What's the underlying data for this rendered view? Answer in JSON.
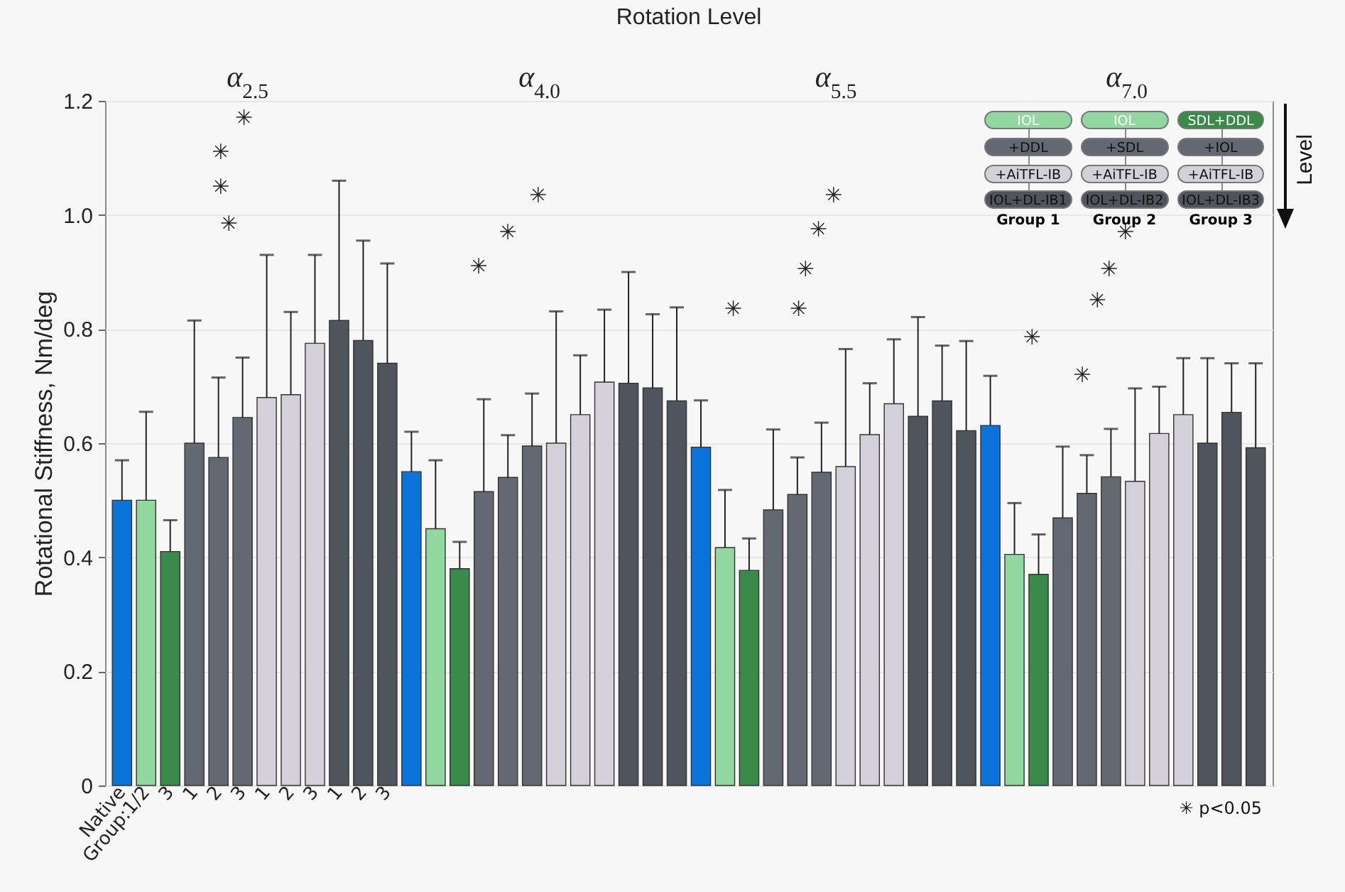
{
  "chart_data": {
    "type": "bar",
    "title": "Rotation Level",
    "ylabel": "Rotational Stiffness, Nm/deg",
    "categories": [
      "Native",
      "Group:1/2",
      "3",
      "1",
      "2",
      "3",
      "1",
      "2",
      "3",
      "1",
      "2",
      "3",
      null,
      null,
      null,
      null,
      null,
      null,
      null,
      null,
      null,
      null,
      null,
      null,
      null,
      null,
      null,
      null,
      null,
      null,
      null,
      null,
      null,
      null,
      null,
      null,
      null,
      null,
      null,
      null,
      null,
      null,
      null,
      null,
      null,
      null,
      null,
      null
    ],
    "values": [
      0.5,
      0.5,
      0.41,
      0.6,
      0.575,
      0.645,
      0.68,
      0.685,
      0.775,
      0.815,
      0.78,
      0.74,
      0.55,
      0.45,
      0.38,
      0.515,
      0.54,
      0.595,
      0.6,
      0.65,
      0.707,
      0.705,
      0.697,
      0.674,
      0.593,
      0.417,
      0.377,
      0.483,
      0.51,
      0.549,
      0.559,
      0.615,
      0.669,
      0.647,
      0.674,
      0.622,
      0.631,
      0.405,
      0.37,
      0.469,
      0.512,
      0.541,
      0.533,
      0.617,
      0.65,
      0.6,
      0.654,
      0.592
    ],
    "errors": [
      [
        0.5,
        0.57
      ],
      [
        0.5,
        0.655
      ],
      [
        0.41,
        0.465
      ],
      [
        0.6,
        0.815
      ],
      [
        0.575,
        0.715
      ],
      [
        0.645,
        0.75
      ],
      [
        0.68,
        0.93
      ],
      [
        0.685,
        0.83
      ],
      [
        0.775,
        0.93
      ],
      [
        0.815,
        1.06
      ],
      [
        0.78,
        0.955
      ],
      [
        0.74,
        0.915
      ],
      [
        0.55,
        0.62
      ],
      [
        0.45,
        0.57
      ],
      [
        0.38,
        0.427
      ],
      [
        0.515,
        0.677
      ],
      [
        0.54,
        0.614
      ],
      [
        0.595,
        0.687
      ],
      [
        0.6,
        0.831
      ],
      [
        0.65,
        0.754
      ],
      [
        0.707,
        0.834
      ],
      [
        0.705,
        0.9
      ],
      [
        0.697,
        0.826
      ],
      [
        0.674,
        0.838
      ],
      [
        0.593,
        0.675
      ],
      [
        0.417,
        0.518
      ],
      [
        0.377,
        0.433
      ],
      [
        0.483,
        0.624
      ],
      [
        0.51,
        0.575
      ],
      [
        0.549,
        0.636
      ],
      [
        0.559,
        0.765
      ],
      [
        0.615,
        0.705
      ],
      [
        0.669,
        0.782
      ],
      [
        0.647,
        0.821
      ],
      [
        0.674,
        0.771
      ],
      [
        0.622,
        0.779
      ],
      [
        0.631,
        0.718
      ],
      [
        0.405,
        0.495
      ],
      [
        0.37,
        0.44
      ],
      [
        0.469,
        0.594
      ],
      [
        0.512,
        0.579
      ],
      [
        0.541,
        0.625
      ],
      [
        0.533,
        0.696
      ],
      [
        0.617,
        0.699
      ],
      [
        0.65,
        0.749
      ],
      [
        0.6,
        0.749
      ],
      [
        0.654,
        0.74
      ],
      [
        0.592,
        0.74
      ]
    ],
    "colors": [
      "#0a74da",
      "#92d6a0",
      "#3a8a4a",
      "#636872",
      "#636872",
      "#636872",
      "#d3d0da",
      "#d3d0da",
      "#d3d0da",
      "#50545c",
      "#50545c",
      "#50545c",
      "#0a74da",
      "#92d6a0",
      "#3a8a4a",
      "#636872",
      "#636872",
      "#636872",
      "#d3d0da",
      "#d3d0da",
      "#d3d0da",
      "#50545c",
      "#50545c",
      "#50545c",
      "#0a74da",
      "#92d6a0",
      "#3a8a4a",
      "#636872",
      "#636872",
      "#636872",
      "#d3d0da",
      "#d3d0da",
      "#d3d0da",
      "#50545c",
      "#50545c",
      "#50545c",
      "#0a74da",
      "#92d6a0",
      "#3a8a4a",
      "#636872",
      "#636872",
      "#636872",
      "#d3d0da",
      "#d3d0da",
      "#d3d0da",
      "#50545c",
      "#50545c",
      "#50545c"
    ],
    "ylim": [
      0,
      1.2
    ],
    "yticks": [
      0,
      0.2,
      0.4,
      0.6,
      0.8,
      {
        "value": 1,
        "label": "1.0"
      },
      1.2
    ],
    "grid": "y",
    "annotations": [
      "α$_{2.5}$",
      "α$_{4.0}$",
      "α$_{5.5}$",
      "α$_{7.0}$",
      "✳",
      "✳",
      "✳",
      "✳",
      "✳",
      "✳",
      "✳",
      "✳",
      "✳",
      "✳",
      "✳",
      "✳",
      "✳",
      "✳",
      "✳",
      "✳",
      "✳",
      "IOL",
      "+DDL",
      "+AiTFL-IB",
      "IOL+DL-IB1",
      "Group 1",
      "IOL",
      "+SDL",
      "+AiTFL-IB",
      "IOL+DL-IB2",
      "Group 2",
      "SDL+DDL",
      "+IOL",
      "+AiTFL-IB",
      "IOL+DL-IB3",
      "Group 3",
      "Level",
      "✳ p<0.05"
    ]
  }
}
